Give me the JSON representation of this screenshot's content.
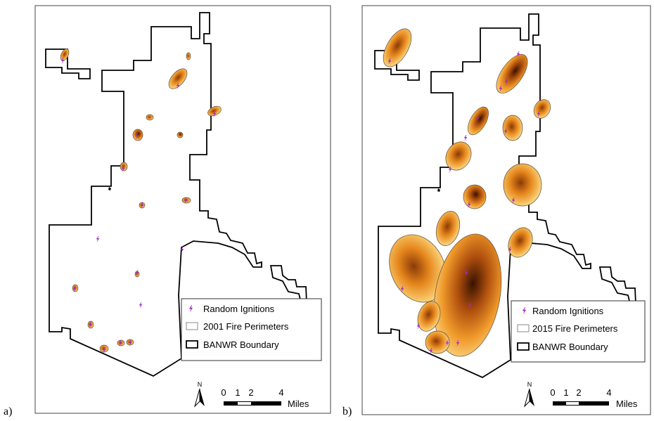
{
  "panels": [
    {
      "label": "a)",
      "legend": [
        "Random Ignitions",
        "2001 Fire Perimeters",
        "BANWR Boundary"
      ],
      "north": "N",
      "scale_labels": [
        "0",
        "1",
        "2",
        "4"
      ],
      "scale_unit": "Miles"
    },
    {
      "label": "b)",
      "legend": [
        "Random Ignitions",
        "2015 Fire Perimeters",
        "BANWR Boundary"
      ],
      "north": "N",
      "scale_labels": [
        "0",
        "1",
        "2",
        "4"
      ],
      "scale_unit": "Miles"
    }
  ]
}
